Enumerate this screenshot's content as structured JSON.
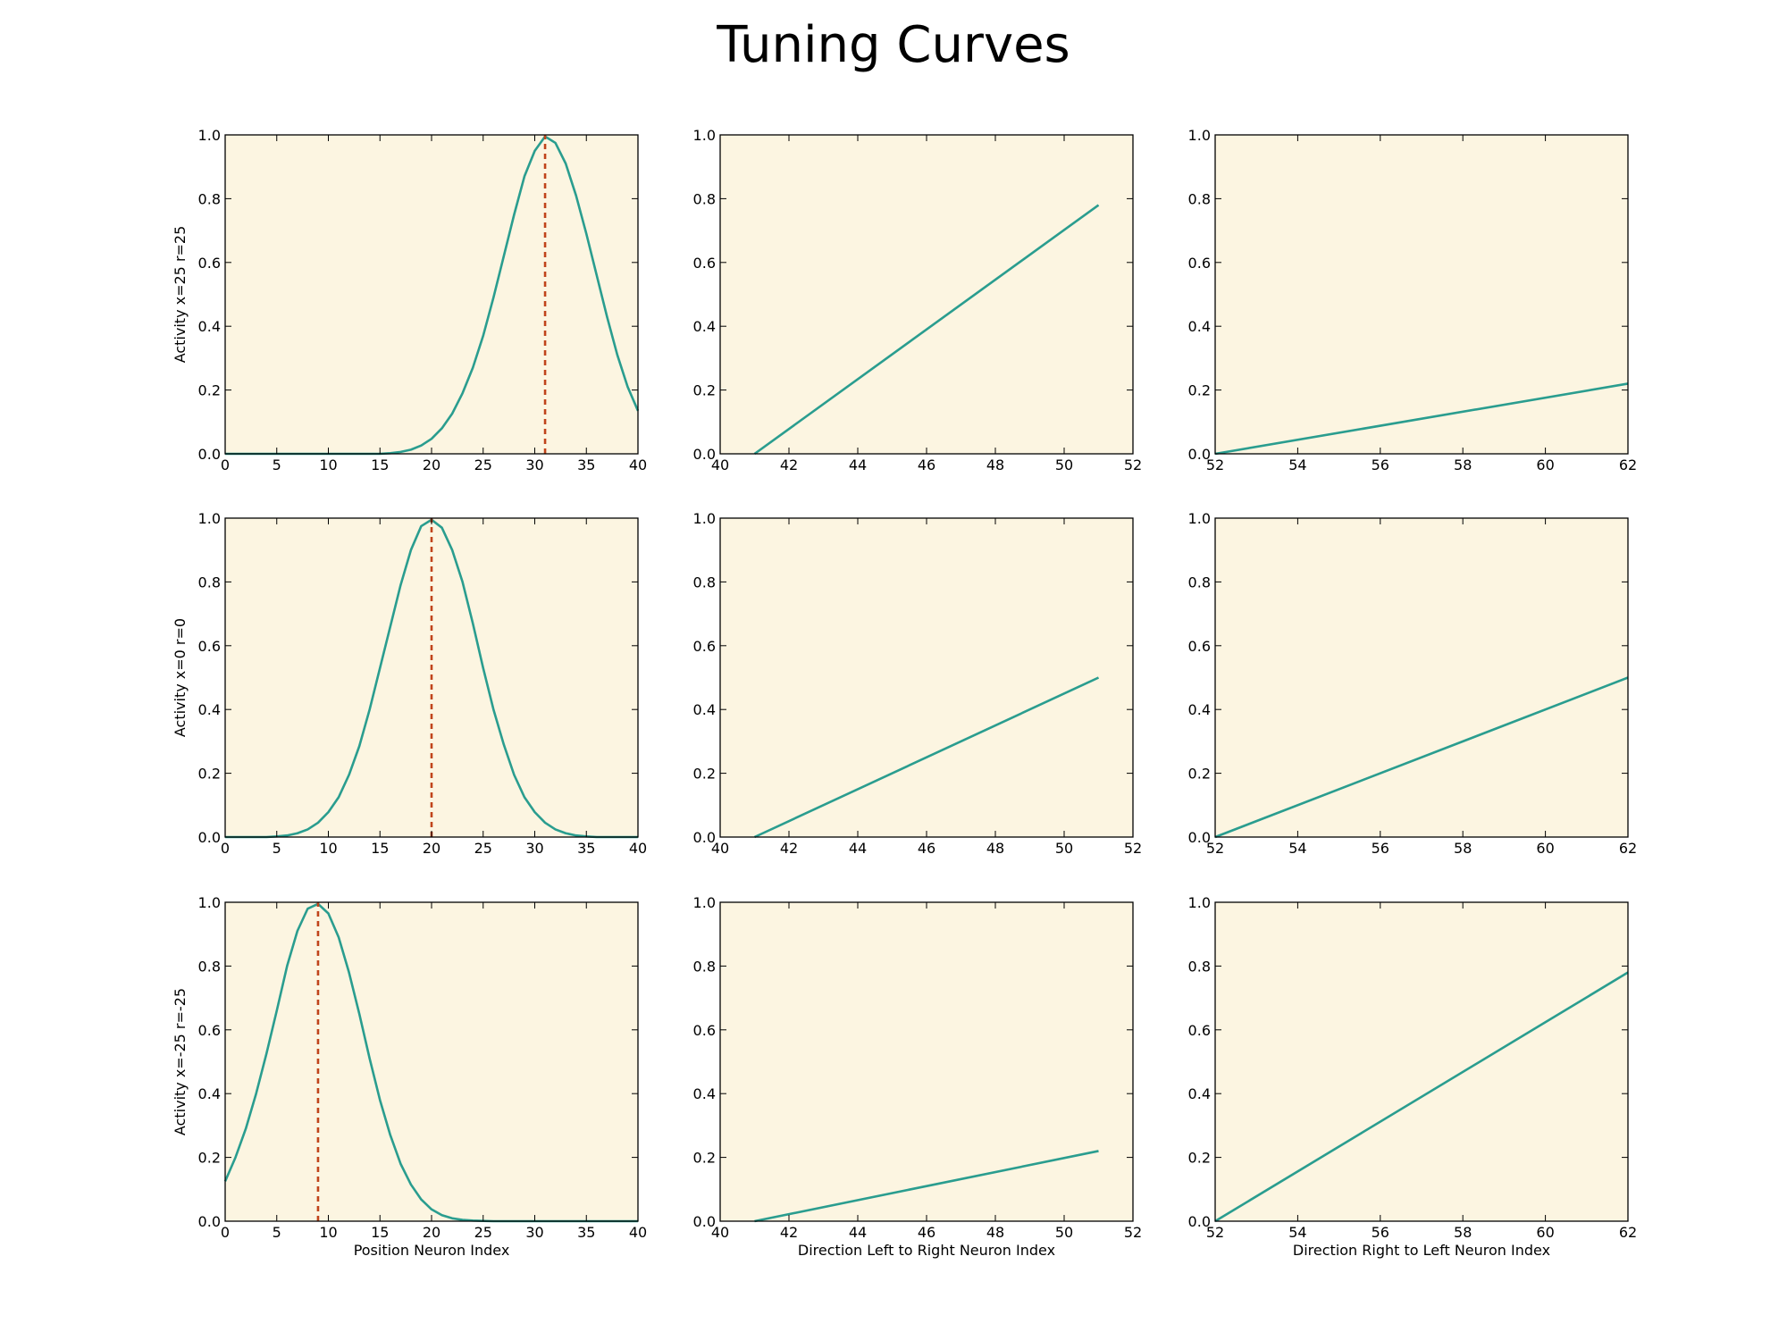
{
  "title": "Tuning Curves",
  "colors": {
    "background": "#FCF5E1",
    "curve": "#2A9D8F",
    "marker": "#C0441B"
  },
  "chart_data": [
    {
      "type": "line",
      "row": 0,
      "col": 0,
      "ylabel": "Activity x=25 r=25",
      "xlabel": "",
      "xlim": [
        0,
        40
      ],
      "ylim": [
        0,
        1
      ],
      "xticks": [
        0,
        5,
        10,
        15,
        20,
        25,
        30,
        35,
        40
      ],
      "yticks": [
        0,
        0.2,
        0.4,
        0.6,
        0.8,
        1.0
      ],
      "series": [
        {
          "x": [
            0,
            1,
            2,
            3,
            4,
            5,
            6,
            7,
            8,
            9,
            10,
            11,
            12,
            13,
            14,
            15,
            16,
            17,
            18,
            19,
            20,
            21,
            22,
            23,
            24,
            25,
            26,
            27,
            28,
            29,
            30,
            31,
            32,
            33,
            34,
            35,
            36,
            37,
            38,
            39,
            40
          ],
          "y": [
            0,
            0,
            0,
            0,
            0,
            0,
            0,
            0,
            0,
            0,
            0,
            0,
            0,
            0,
            0,
            0,
            0.002,
            0.006,
            0.013,
            0.026,
            0.047,
            0.08,
            0.126,
            0.19,
            0.27,
            0.37,
            0.49,
            0.62,
            0.75,
            0.87,
            0.95,
            0.995,
            0.975,
            0.91,
            0.81,
            0.69,
            0.56,
            0.43,
            0.31,
            0.21,
            0.135
          ]
        }
      ],
      "marker_x": 31
    },
    {
      "type": "line",
      "row": 0,
      "col": 1,
      "ylabel": "",
      "xlabel": "",
      "xlim": [
        40,
        52
      ],
      "ylim": [
        0,
        1
      ],
      "xticks": [
        40,
        42,
        44,
        46,
        48,
        50,
        52
      ],
      "yticks": [
        0,
        0.2,
        0.4,
        0.6,
        0.8,
        1.0
      ],
      "series": [
        {
          "x": [
            41,
            51
          ],
          "y": [
            0,
            0.78
          ]
        }
      ]
    },
    {
      "type": "line",
      "row": 0,
      "col": 2,
      "ylabel": "",
      "xlabel": "",
      "xlim": [
        52,
        62
      ],
      "ylim": [
        0,
        1
      ],
      "xticks": [
        52,
        54,
        56,
        58,
        60,
        62
      ],
      "yticks": [
        0,
        0.2,
        0.4,
        0.6,
        0.8,
        1.0
      ],
      "series": [
        {
          "x": [
            52,
            62
          ],
          "y": [
            0,
            0.22
          ]
        }
      ]
    },
    {
      "type": "line",
      "row": 1,
      "col": 0,
      "ylabel": "Activity x=0 r=0",
      "xlabel": "",
      "xlim": [
        0,
        40
      ],
      "ylim": [
        0,
        1
      ],
      "xticks": [
        0,
        5,
        10,
        15,
        20,
        25,
        30,
        35,
        40
      ],
      "yticks": [
        0,
        0.2,
        0.4,
        0.6,
        0.8,
        1.0
      ],
      "series": [
        {
          "x": [
            0,
            1,
            2,
            3,
            4,
            5,
            6,
            7,
            8,
            9,
            10,
            11,
            12,
            13,
            14,
            15,
            16,
            17,
            18,
            19,
            20,
            21,
            22,
            23,
            24,
            25,
            26,
            27,
            28,
            29,
            30,
            31,
            32,
            33,
            34,
            35,
            36,
            37,
            38,
            39,
            40
          ],
          "y": [
            0,
            0,
            0,
            0,
            0,
            0.002,
            0.005,
            0.012,
            0.024,
            0.045,
            0.078,
            0.125,
            0.195,
            0.285,
            0.4,
            0.53,
            0.66,
            0.79,
            0.9,
            0.975,
            0.995,
            0.97,
            0.9,
            0.8,
            0.67,
            0.53,
            0.4,
            0.29,
            0.195,
            0.125,
            0.078,
            0.045,
            0.024,
            0.012,
            0.005,
            0.002,
            0,
            0,
            0,
            0,
            0
          ]
        }
      ],
      "marker_x": 20
    },
    {
      "type": "line",
      "row": 1,
      "col": 1,
      "ylabel": "",
      "xlabel": "",
      "xlim": [
        40,
        52
      ],
      "ylim": [
        0,
        1
      ],
      "xticks": [
        40,
        42,
        44,
        46,
        48,
        50,
        52
      ],
      "yticks": [
        0,
        0.2,
        0.4,
        0.6,
        0.8,
        1.0
      ],
      "series": [
        {
          "x": [
            41,
            51
          ],
          "y": [
            0,
            0.5
          ]
        }
      ]
    },
    {
      "type": "line",
      "row": 1,
      "col": 2,
      "ylabel": "",
      "xlabel": "",
      "xlim": [
        52,
        62
      ],
      "ylim": [
        0,
        1
      ],
      "xticks": [
        52,
        54,
        56,
        58,
        60,
        62
      ],
      "yticks": [
        0,
        0.2,
        0.4,
        0.6,
        0.8,
        1.0
      ],
      "series": [
        {
          "x": [
            52,
            62
          ],
          "y": [
            0,
            0.5
          ]
        }
      ]
    },
    {
      "type": "line",
      "row": 2,
      "col": 0,
      "ylabel": "Activity x=-25 r=-25",
      "xlabel": "Position Neuron Index",
      "xlim": [
        0,
        40
      ],
      "ylim": [
        0,
        1
      ],
      "xticks": [
        0,
        5,
        10,
        15,
        20,
        25,
        30,
        35,
        40
      ],
      "yticks": [
        0,
        0.2,
        0.4,
        0.6,
        0.8,
        1.0
      ],
      "series": [
        {
          "x": [
            0,
            1,
            2,
            3,
            4,
            5,
            6,
            7,
            8,
            9,
            10,
            11,
            12,
            13,
            14,
            15,
            16,
            17,
            18,
            19,
            20,
            21,
            22,
            23,
            24,
            25,
            26,
            27,
            28,
            29,
            30,
            31,
            32,
            33,
            34,
            35,
            36,
            37,
            38,
            39,
            40
          ],
          "y": [
            0.125,
            0.2,
            0.29,
            0.4,
            0.525,
            0.66,
            0.8,
            0.91,
            0.98,
            0.995,
            0.965,
            0.89,
            0.78,
            0.65,
            0.51,
            0.38,
            0.27,
            0.18,
            0.115,
            0.068,
            0.037,
            0.019,
            0.009,
            0.004,
            0.002,
            0.001,
            0,
            0,
            0,
            0,
            0,
            0,
            0,
            0,
            0,
            0,
            0,
            0,
            0,
            0,
            0
          ]
        }
      ],
      "marker_x": 9
    },
    {
      "type": "line",
      "row": 2,
      "col": 1,
      "ylabel": "",
      "xlabel": "Direction Left to Right Neuron Index",
      "xlim": [
        40,
        52
      ],
      "ylim": [
        0,
        1
      ],
      "xticks": [
        40,
        42,
        44,
        46,
        48,
        50,
        52
      ],
      "yticks": [
        0,
        0.2,
        0.4,
        0.6,
        0.8,
        1.0
      ],
      "series": [
        {
          "x": [
            41,
            51
          ],
          "y": [
            0,
            0.22
          ]
        }
      ]
    },
    {
      "type": "line",
      "row": 2,
      "col": 2,
      "ylabel": "",
      "xlabel": "Direction Right to Left Neuron Index",
      "xlim": [
        52,
        62
      ],
      "ylim": [
        0,
        1
      ],
      "xticks": [
        52,
        54,
        56,
        58,
        60,
        62
      ],
      "yticks": [
        0,
        0.2,
        0.4,
        0.6,
        0.8,
        1.0
      ],
      "series": [
        {
          "x": [
            52,
            62
          ],
          "y": [
            0,
            0.78
          ]
        }
      ]
    }
  ]
}
